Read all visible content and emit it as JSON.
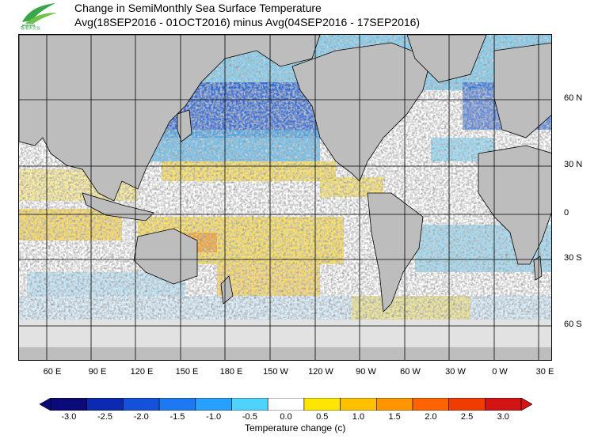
{
  "header": {
    "title_line1": "Change in SemiMonthly Sea Surface Temperature",
    "title_line2": "Avg(18SEP2016 - 01OCT2016) minus Avg(04SEP2016 - 17SEP2016)",
    "logo_icon": "hko-leaf-logo-icon"
  },
  "map": {
    "lat_labels": [
      "60 N",
      "30 N",
      "0",
      "30 S",
      "60 S"
    ],
    "lon_labels": [
      "60 E",
      "90 E",
      "120 E",
      "150 E",
      "180 E",
      "150 W",
      "120 W",
      "90 W",
      "60 W",
      "30 W",
      "0 W",
      "30 E"
    ],
    "land_color": "#bdbdbd",
    "ice_color": "#e2e2e2"
  },
  "colorbar": {
    "title": "Temperature change  (c)",
    "ticks": [
      "-3.0",
      "-2.5",
      "-2.0",
      "-1.5",
      "-1.0",
      "-0.5",
      "0.0",
      "0.5",
      "1.0",
      "1.5",
      "2.0",
      "2.5",
      "3.0"
    ],
    "colors": [
      "#0a0a78",
      "#0c2ab0",
      "#1450d8",
      "#1e78f0",
      "#28a0ff",
      "#50d2ff",
      "#ffffff",
      "#ffe600",
      "#ffc000",
      "#ff9600",
      "#ff6400",
      "#f03c00",
      "#d21414"
    ]
  }
}
